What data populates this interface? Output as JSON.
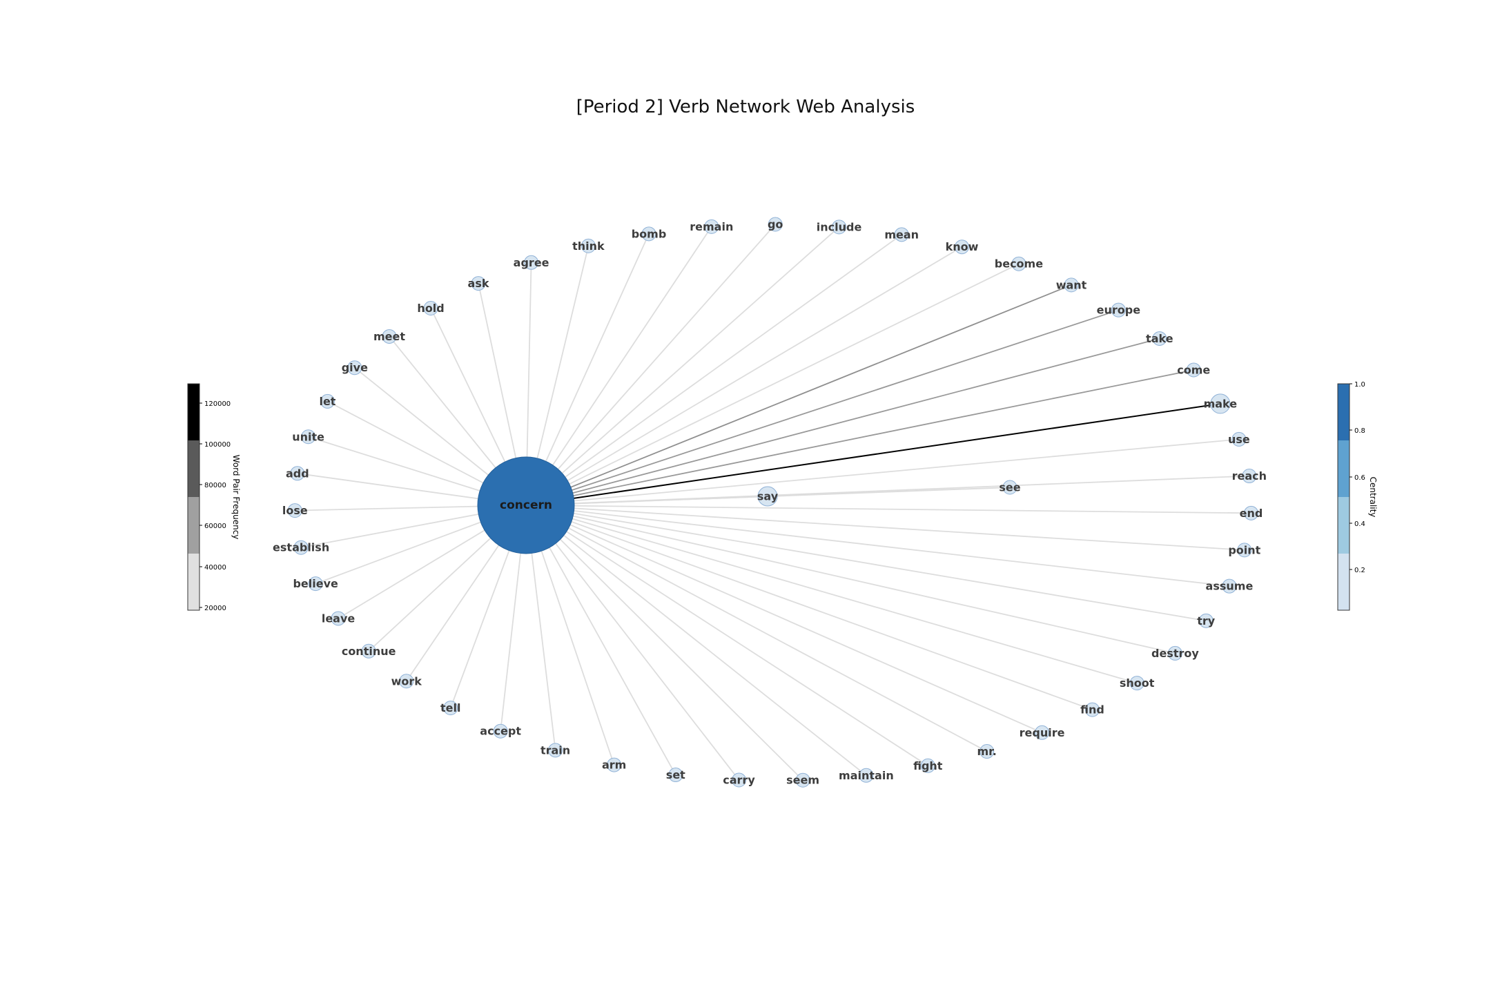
{
  "title": "[Period 2] Verb Network Web Analysis",
  "colorbars": {
    "frequency": {
      "label": "Word Pair Frequency",
      "ticks": [
        "20000",
        "40000",
        "60000",
        "80000",
        "100000",
        "120000"
      ],
      "band_colors": [
        "#e0e0e0",
        "#a0a0a0",
        "#5a5a5a",
        "#000000"
      ]
    },
    "centrality": {
      "label": "Centrality",
      "ticks": [
        "0.2",
        "0.4",
        "0.6",
        "0.8",
        "1.0"
      ],
      "band_colors": [
        "#d3e2f0",
        "#9ecae1",
        "#5fa2d0",
        "#2b6fb0"
      ]
    }
  },
  "chart_data": {
    "type": "network",
    "hub": {
      "label": "concern",
      "color": "#2b6fb0"
    },
    "secondary": [
      {
        "label": "say",
        "edge_color": "#dddddd"
      },
      {
        "label": "see",
        "edge_color": "#dddddd"
      }
    ],
    "ring_nodes": [
      {
        "label": "make",
        "edge_color": "#000000",
        "emphasis": true
      },
      {
        "label": "come",
        "edge_color": "#999999"
      },
      {
        "label": "take",
        "edge_color": "#999999"
      },
      {
        "label": "europe",
        "edge_color": "#999999"
      },
      {
        "label": "want",
        "edge_color": "#8f8f8f"
      },
      {
        "label": "become",
        "edge_color": "#dddddd"
      },
      {
        "label": "know",
        "edge_color": "#dddddd"
      },
      {
        "label": "mean",
        "edge_color": "#dddddd"
      },
      {
        "label": "include",
        "edge_color": "#dddddd"
      },
      {
        "label": "go",
        "edge_color": "#dddddd"
      },
      {
        "label": "remain",
        "edge_color": "#dddddd"
      },
      {
        "label": "bomb",
        "edge_color": "#dddddd"
      },
      {
        "label": "think",
        "edge_color": "#dddddd"
      },
      {
        "label": "agree",
        "edge_color": "#dddddd"
      },
      {
        "label": "ask",
        "edge_color": "#dddddd"
      },
      {
        "label": "hold",
        "edge_color": "#dddddd"
      },
      {
        "label": "meet",
        "edge_color": "#dddddd"
      },
      {
        "label": "give",
        "edge_color": "#dddddd"
      },
      {
        "label": "let",
        "edge_color": "#dddddd"
      },
      {
        "label": "unite",
        "edge_color": "#dddddd"
      },
      {
        "label": "add",
        "edge_color": "#dddddd"
      },
      {
        "label": "lose",
        "edge_color": "#dddddd"
      },
      {
        "label": "establish",
        "edge_color": "#dddddd"
      },
      {
        "label": "believe",
        "edge_color": "#dddddd"
      },
      {
        "label": "leave",
        "edge_color": "#dddddd"
      },
      {
        "label": "continue",
        "edge_color": "#dddddd"
      },
      {
        "label": "work",
        "edge_color": "#dddddd"
      },
      {
        "label": "tell",
        "edge_color": "#dddddd"
      },
      {
        "label": "accept",
        "edge_color": "#dddddd"
      },
      {
        "label": "train",
        "edge_color": "#dddddd"
      },
      {
        "label": "arm",
        "edge_color": "#dddddd"
      },
      {
        "label": "set",
        "edge_color": "#dddddd"
      },
      {
        "label": "carry",
        "edge_color": "#dddddd"
      },
      {
        "label": "seem",
        "edge_color": "#dddddd"
      },
      {
        "label": "maintain",
        "edge_color": "#dddddd"
      },
      {
        "label": "fight",
        "edge_color": "#dddddd"
      },
      {
        "label": "mr.",
        "edge_color": "#dddddd"
      },
      {
        "label": "require",
        "edge_color": "#dddddd"
      },
      {
        "label": "find",
        "edge_color": "#dddddd"
      },
      {
        "label": "shoot",
        "edge_color": "#dddddd"
      },
      {
        "label": "destroy",
        "edge_color": "#dddddd"
      },
      {
        "label": "try",
        "edge_color": "#dddddd"
      },
      {
        "label": "assume",
        "edge_color": "#dddddd"
      },
      {
        "label": "point",
        "edge_color": "#dddddd"
      },
      {
        "label": "end",
        "edge_color": "#dddddd"
      },
      {
        "label": "reach",
        "edge_color": "#dddddd"
      },
      {
        "label": "use",
        "edge_color": "#dddddd"
      }
    ]
  }
}
